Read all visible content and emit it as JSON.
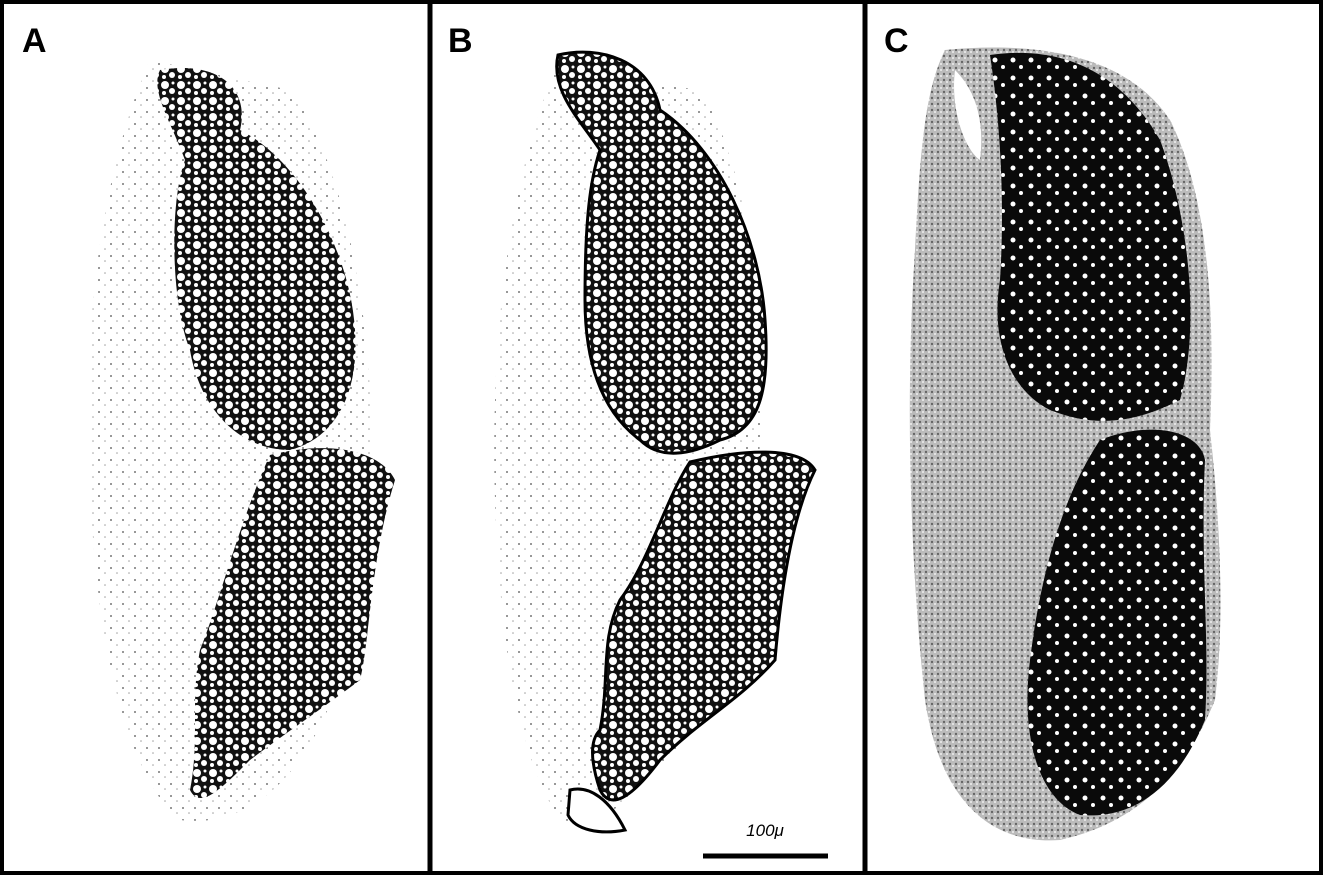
{
  "panels": [
    {
      "label": "A"
    },
    {
      "label": "B"
    },
    {
      "label": "C"
    }
  ],
  "scale_bar": {
    "label": "100μ"
  }
}
